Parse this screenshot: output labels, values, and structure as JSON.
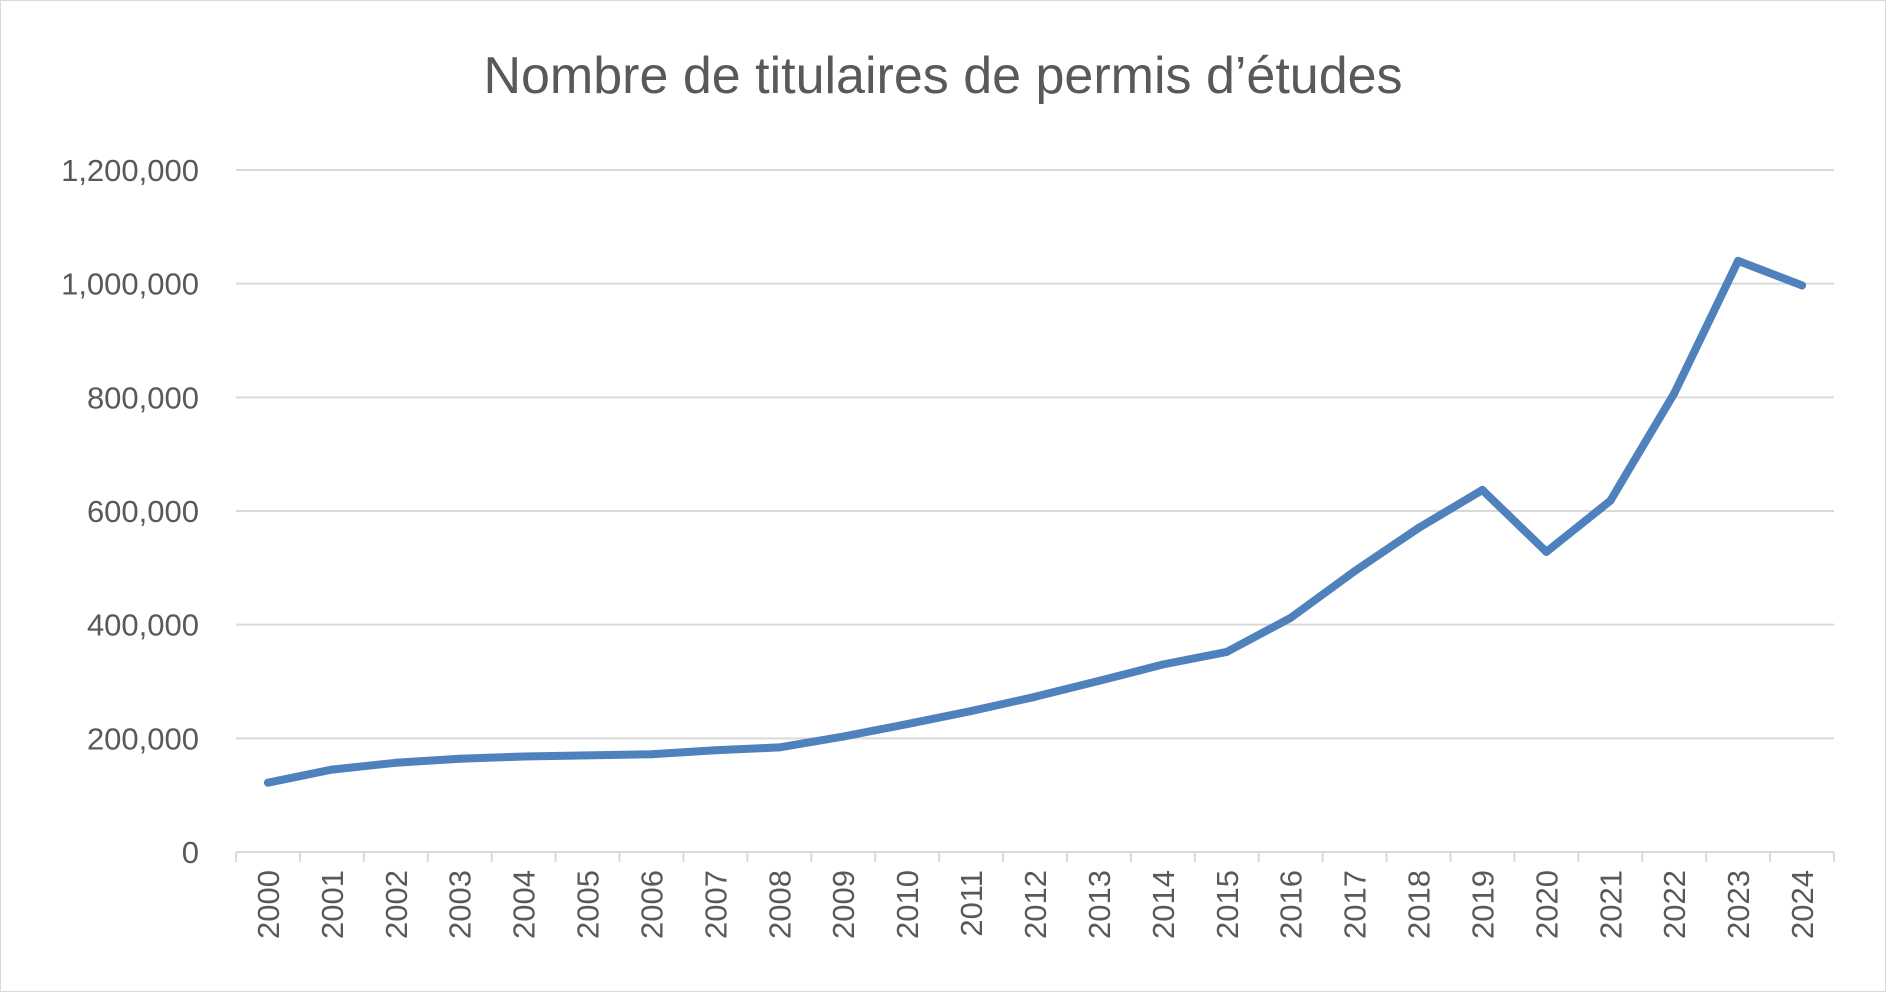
{
  "chart_data": {
    "type": "line",
    "title": "Nombre de titulaires de permis d’études",
    "xlabel": "",
    "ylabel": "",
    "x": [
      "2000",
      "2001",
      "2002",
      "2003",
      "2004",
      "2005",
      "2006",
      "2007",
      "2008",
      "2009",
      "2010",
      "2011",
      "2012",
      "2013",
      "2014",
      "2015",
      "2016",
      "2017",
      "2018",
      "2019",
      "2020",
      "2021",
      "2022",
      "2023",
      "2024"
    ],
    "series": [
      {
        "values": [
          122000,
          145000,
          157000,
          164000,
          168000,
          170000,
          172000,
          179000,
          184000,
          203000,
          225000,
          248000,
          273000,
          301000,
          330000,
          352000,
          412000,
          494000,
          570000,
          637000,
          528000,
          618000,
          807000,
          1040000,
          997000
        ],
        "color": "#4f81bd"
      }
    ],
    "ylim": [
      0,
      1200000
    ],
    "yticks": [
      0,
      200000,
      400000,
      600000,
      800000,
      1000000,
      1200000
    ],
    "ytick_labels": [
      "0",
      "200,000",
      "400,000",
      "600,000",
      "800,000",
      "1,000,000",
      "1,200,000"
    ],
    "grid": true,
    "legend": "none",
    "colors": {
      "line": "#4f81bd",
      "grid": "#d9d9d9",
      "text": "#595959"
    }
  }
}
